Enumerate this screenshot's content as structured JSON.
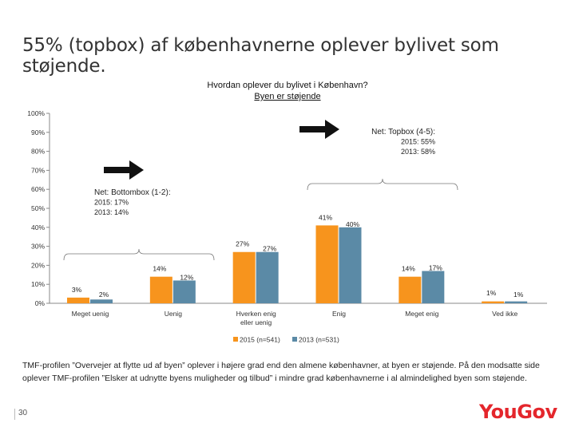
{
  "slide": {
    "title": "55% (topbox) af københavnerne oplever bylivet som støjende.",
    "page_number": "30",
    "logo_text": "YouGov",
    "footnote": "TMF-profilen ”Overvejer at flytte ud af byen” oplever i højere grad end den almene københavner, at byen er støjende. På den modsatte side oplever TMF-profilen ”Elsker at udnytte byens muligheder og tilbud” i mindre grad københavnerne i al almindelighed byen som støjende."
  },
  "chart_data": {
    "type": "bar",
    "title": "Hvordan oplever du bylivet i København?",
    "subtitle": "Byen er støjende",
    "categories": [
      "Meget uenig",
      "Uenig",
      "Hverken enig eller uenig",
      "Enig",
      "Meget enig",
      "Ved ikke"
    ],
    "series": [
      {
        "name": "2015 (n=541)",
        "color": "#f7941d",
        "values": [
          3,
          14,
          27,
          41,
          14,
          1
        ],
        "labels": [
          "3%",
          "14%",
          "27%",
          "41%",
          "14%",
          "1%"
        ]
      },
      {
        "name": "2013 (n=531)",
        "color": "#5b8aa6",
        "values": [
          2,
          12,
          27,
          40,
          17,
          1
        ],
        "labels": [
          "2%",
          "12%",
          "27%",
          "40%",
          "17%",
          "1%"
        ]
      }
    ],
    "yticks": [
      "0%",
      "10%",
      "20%",
      "30%",
      "40%",
      "50%",
      "60%",
      "70%",
      "80%",
      "90%",
      "100%"
    ],
    "ylim": [
      0,
      100
    ],
    "grid": false,
    "legend": "bottom",
    "annotations": [
      {
        "id": "bottombox",
        "lines": [
          "Net: Bottombox (1-2):",
          "2015: 17%",
          "2013: 14%"
        ]
      },
      {
        "id": "topbox",
        "lines": [
          "Net: Topbox (4-5):",
          "2015: 55%",
          "2013: 58%"
        ]
      }
    ]
  }
}
